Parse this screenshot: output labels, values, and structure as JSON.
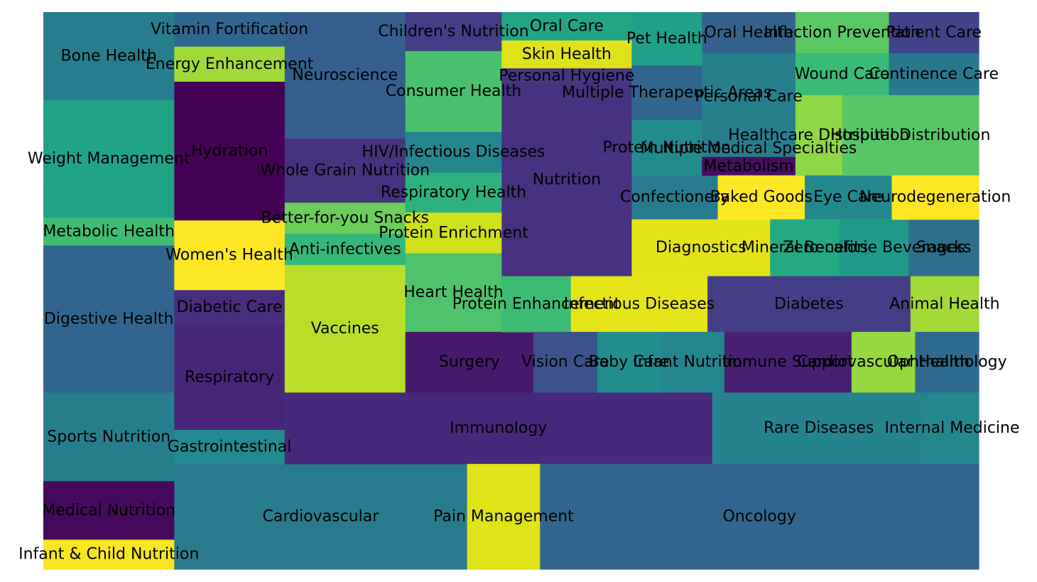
{
  "chart_data": {
    "type": "treemap",
    "title": "",
    "xlabel": "",
    "ylabel": "",
    "xlim": [
      0,
      100
    ],
    "ylim": [
      0,
      100
    ],
    "axes_visible": false,
    "grid": false,
    "legend": "none",
    "tiles": [
      {
        "label": "Bone Health",
        "x": 0.0,
        "y": 84.2,
        "w": 14.0,
        "h": 15.8,
        "color": "#287d8e"
      },
      {
        "label": "Weight Management",
        "x": 0.0,
        "y": 63.1,
        "w": 14.0,
        "h": 21.1,
        "color": "#20a386"
      },
      {
        "label": "Metabolic Health",
        "x": 0.0,
        "y": 58.1,
        "w": 14.0,
        "h": 5.0,
        "color": "#40bd72"
      },
      {
        "label": "Digestive Health",
        "x": 0.0,
        "y": 31.7,
        "w": 14.0,
        "h": 26.4,
        "color": "#32658e"
      },
      {
        "label": "Sports Nutrition",
        "x": 0.0,
        "y": 15.8,
        "w": 14.0,
        "h": 15.9,
        "color": "#277f8e"
      },
      {
        "label": "Medical Nutrition",
        "x": 0.0,
        "y": 5.3,
        "w": 14.0,
        "h": 10.5,
        "color": "#450a5c"
      },
      {
        "label": "Infant & Child Nutrition",
        "x": 0.0,
        "y": 0.0,
        "w": 14.0,
        "h": 5.3,
        "color": "#f8e621"
      },
      {
        "label": "Vitamin Fortification",
        "x": 14.0,
        "y": 93.8,
        "w": 11.8,
        "h": 6.2,
        "color": "#31668e"
      },
      {
        "label": "Energy Enhancement",
        "x": 14.0,
        "y": 87.5,
        "w": 11.8,
        "h": 6.3,
        "color": "#a0da39"
      },
      {
        "label": "Hydration",
        "x": 14.0,
        "y": 62.6,
        "w": 11.8,
        "h": 24.9,
        "color": "#440154"
      },
      {
        "label": "Women's Health",
        "x": 14.0,
        "y": 50.1,
        "w": 11.8,
        "h": 12.5,
        "color": "#fde725"
      },
      {
        "label": "Diabetic Care",
        "x": 14.0,
        "y": 43.9,
        "w": 11.8,
        "h": 6.2,
        "color": "#472d7b"
      },
      {
        "label": "Respiratory",
        "x": 14.0,
        "y": 25.0,
        "w": 11.8,
        "h": 18.9,
        "color": "#482677"
      },
      {
        "label": "Gastrointestinal",
        "x": 14.0,
        "y": 18.9,
        "w": 11.8,
        "h": 6.1,
        "color": "#23898e"
      },
      {
        "label": "Cardiovascular",
        "x": 14.0,
        "y": 0.0,
        "w": 31.3,
        "h": 18.9,
        "color": "#287c8e"
      },
      {
        "label": "Neuroscience",
        "x": 25.8,
        "y": 77.3,
        "w": 12.9,
        "h": 22.7,
        "color": "#355f8d"
      },
      {
        "label": "Whole Grain Nutrition",
        "x": 25.8,
        "y": 65.8,
        "w": 12.9,
        "h": 11.5,
        "color": "#46337e"
      },
      {
        "label": "Better-for-you Snacks",
        "x": 25.8,
        "y": 60.2,
        "w": 12.9,
        "h": 5.6,
        "color": "#6ccd5a"
      },
      {
        "label": "Anti-infectives",
        "x": 25.8,
        "y": 54.6,
        "w": 12.9,
        "h": 5.6,
        "color": "#35b779"
      },
      {
        "label": "Vaccines",
        "x": 25.8,
        "y": 31.7,
        "w": 12.9,
        "h": 22.9,
        "color": "#bade28"
      },
      {
        "label": "Children's Nutrition",
        "x": 38.7,
        "y": 93.0,
        "w": 10.3,
        "h": 7.0,
        "color": "#433e85"
      },
      {
        "label": "Consumer Health",
        "x": 38.7,
        "y": 78.5,
        "w": 10.3,
        "h": 14.5,
        "color": "#4ac16d"
      },
      {
        "label": "HIV/Infectious Diseases",
        "x": 38.7,
        "y": 71.2,
        "w": 10.3,
        "h": 7.3,
        "color": "#25858e"
      },
      {
        "label": "Respiratory Health",
        "x": 38.7,
        "y": 64.0,
        "w": 10.3,
        "h": 7.2,
        "color": "#2db27d"
      },
      {
        "label": "Protein Enrichment",
        "x": 38.7,
        "y": 56.7,
        "w": 10.3,
        "h": 7.3,
        "color": "#d0e11c"
      },
      {
        "label": "Heart Health",
        "x": 38.7,
        "y": 42.6,
        "w": 10.3,
        "h": 14.1,
        "color": "#4ec36b"
      },
      {
        "label": "Surgery",
        "x": 38.7,
        "y": 31.7,
        "w": 13.7,
        "h": 10.9,
        "color": "#481a6c"
      },
      {
        "label": "Oral Care",
        "x": 49.0,
        "y": 94.9,
        "w": 13.9,
        "h": 5.1,
        "color": "#21a585"
      },
      {
        "label": "Skin Health",
        "x": 49.0,
        "y": 89.9,
        "w": 13.9,
        "h": 5.0,
        "color": "#dde318"
      },
      {
        "label": "Personal Hygiene",
        "x": 49.0,
        "y": 87.2,
        "w": 13.9,
        "h": 2.7,
        "color": "#453882"
      },
      {
        "label": "Nutrition",
        "x": 49.0,
        "y": 52.6,
        "w": 13.9,
        "h": 34.6,
        "color": "#46327e"
      },
      {
        "label": "Protein Enhancement",
        "x": 49.0,
        "y": 42.6,
        "w": 7.4,
        "h": 10.0,
        "color": "#3dbc74"
      },
      {
        "label": "Infectious Diseases",
        "x": 56.4,
        "y": 42.6,
        "w": 14.6,
        "h": 10.0,
        "color": "#e5e419"
      },
      {
        "label": "Pet Health",
        "x": 62.9,
        "y": 90.4,
        "w": 7.5,
        "h": 9.6,
        "color": "#1fa088"
      },
      {
        "label": "Multiple Therapeutic Areas",
        "x": 62.9,
        "y": 80.6,
        "w": 7.5,
        "h": 9.8,
        "color": "#31668e"
      },
      {
        "label": "Protein Nutrition",
        "x": 62.9,
        "y": 70.7,
        "w": 7.5,
        "h": 9.9,
        "color": "#228c8d"
      },
      {
        "label": "Confectionery",
        "x": 62.9,
        "y": 62.8,
        "w": 9.2,
        "h": 7.9,
        "color": "#287c8e"
      },
      {
        "label": "Diagnostics",
        "x": 62.9,
        "y": 52.6,
        "w": 14.8,
        "h": 10.2,
        "color": "#e2e418"
      },
      {
        "label": "Oral Health",
        "x": 70.4,
        "y": 92.6,
        "w": 10.0,
        "h": 7.4,
        "color": "#33638d"
      },
      {
        "label": "Personal Care",
        "x": 70.4,
        "y": 77.0,
        "w": 10.0,
        "h": 15.6,
        "color": "#277f8e"
      },
      {
        "label": "Multiple Medical Specialties",
        "x": 70.4,
        "y": 74.0,
        "w": 10.0,
        "h": 3.0,
        "color": "#287d8e"
      },
      {
        "label": "Metabolism",
        "x": 70.4,
        "y": 70.7,
        "w": 10.0,
        "h": 3.3,
        "color": "#470e61"
      },
      {
        "label": "Baked Goods",
        "x": 72.1,
        "y": 62.8,
        "w": 9.3,
        "h": 7.9,
        "color": "#fde725"
      },
      {
        "label": "Infection Prevention",
        "x": 80.4,
        "y": 92.6,
        "w": 10.0,
        "h": 7.4,
        "color": "#5ac864"
      },
      {
        "label": "Wound Care",
        "x": 80.4,
        "y": 85.1,
        "w": 10.0,
        "h": 7.5,
        "color": "#3bbb75"
      },
      {
        "label": "Healthcare Distribution",
        "x": 80.4,
        "y": 70.7,
        "w": 5.0,
        "h": 14.4,
        "color": "#8fd744"
      },
      {
        "label": "Eye Care",
        "x": 81.4,
        "y": 62.8,
        "w": 9.3,
        "h": 7.9,
        "color": "#23888e"
      },
      {
        "label": "Mineral Benefits",
        "x": 77.7,
        "y": 52.6,
        "w": 7.4,
        "h": 10.2,
        "color": "#24aa83"
      },
      {
        "label": "Zero-calorie Beverages",
        "x": 85.1,
        "y": 52.6,
        "w": 7.4,
        "h": 10.2,
        "color": "#1f9a8a"
      },
      {
        "label": "Snacks",
        "x": 92.5,
        "y": 52.6,
        "w": 7.5,
        "h": 10.2,
        "color": "#2e6f8e"
      },
      {
        "label": "Patient Care",
        "x": 90.4,
        "y": 92.6,
        "w": 9.6,
        "h": 7.4,
        "color": "#414287"
      },
      {
        "label": "Continence Care",
        "x": 90.4,
        "y": 85.1,
        "w": 9.6,
        "h": 7.5,
        "color": "#29798e"
      },
      {
        "label": "Hospital Distribution",
        "x": 85.4,
        "y": 70.7,
        "w": 14.6,
        "h": 14.4,
        "color": "#56c667"
      },
      {
        "label": "Neurodegeneration",
        "x": 90.7,
        "y": 62.8,
        "w": 9.3,
        "h": 7.9,
        "color": "#fde725"
      },
      {
        "label": "Diabetes",
        "x": 71.0,
        "y": 42.6,
        "w": 21.7,
        "h": 10.0,
        "color": "#433e85"
      },
      {
        "label": "Animal Health",
        "x": 92.7,
        "y": 42.6,
        "w": 7.3,
        "h": 10.0,
        "color": "#a2da37"
      },
      {
        "label": "Vision Care",
        "x": 52.4,
        "y": 31.7,
        "w": 6.8,
        "h": 10.9,
        "color": "#3b528b"
      },
      {
        "label": "Baby Care",
        "x": 59.2,
        "y": 31.7,
        "w": 6.8,
        "h": 10.9,
        "color": "#228d8d"
      },
      {
        "label": "Infant Nutrition",
        "x": 66.0,
        "y": 31.7,
        "w": 6.8,
        "h": 10.9,
        "color": "#25858e"
      },
      {
        "label": "Immune Support",
        "x": 72.8,
        "y": 31.7,
        "w": 13.6,
        "h": 10.9,
        "color": "#482173"
      },
      {
        "label": "Cardiovascular Health",
        "x": 86.4,
        "y": 31.7,
        "w": 6.8,
        "h": 10.9,
        "color": "#95d840"
      },
      {
        "label": "Ophthalmology",
        "x": 93.2,
        "y": 31.7,
        "w": 6.8,
        "h": 10.9,
        "color": "#2f6b8e"
      },
      {
        "label": "Immunology",
        "x": 25.8,
        "y": 18.9,
        "w": 45.7,
        "h": 12.8,
        "color": "#46297a"
      },
      {
        "label": "Rare Diseases",
        "x": 71.5,
        "y": 18.9,
        "w": 22.8,
        "h": 12.8,
        "color": "#25838e"
      },
      {
        "label": "Internal Medicine",
        "x": 94.3,
        "y": 18.9,
        "w": 5.7,
        "h": 12.8,
        "color": "#24878e"
      },
      {
        "label": "Pain Management",
        "x": 45.3,
        "y": 0.0,
        "w": 7.8,
        "h": 18.9,
        "color": "#dfe318"
      },
      {
        "label": "Oncology",
        "x": 53.1,
        "y": 0.0,
        "w": 46.9,
        "h": 18.9,
        "color": "#31668e"
      }
    ]
  }
}
